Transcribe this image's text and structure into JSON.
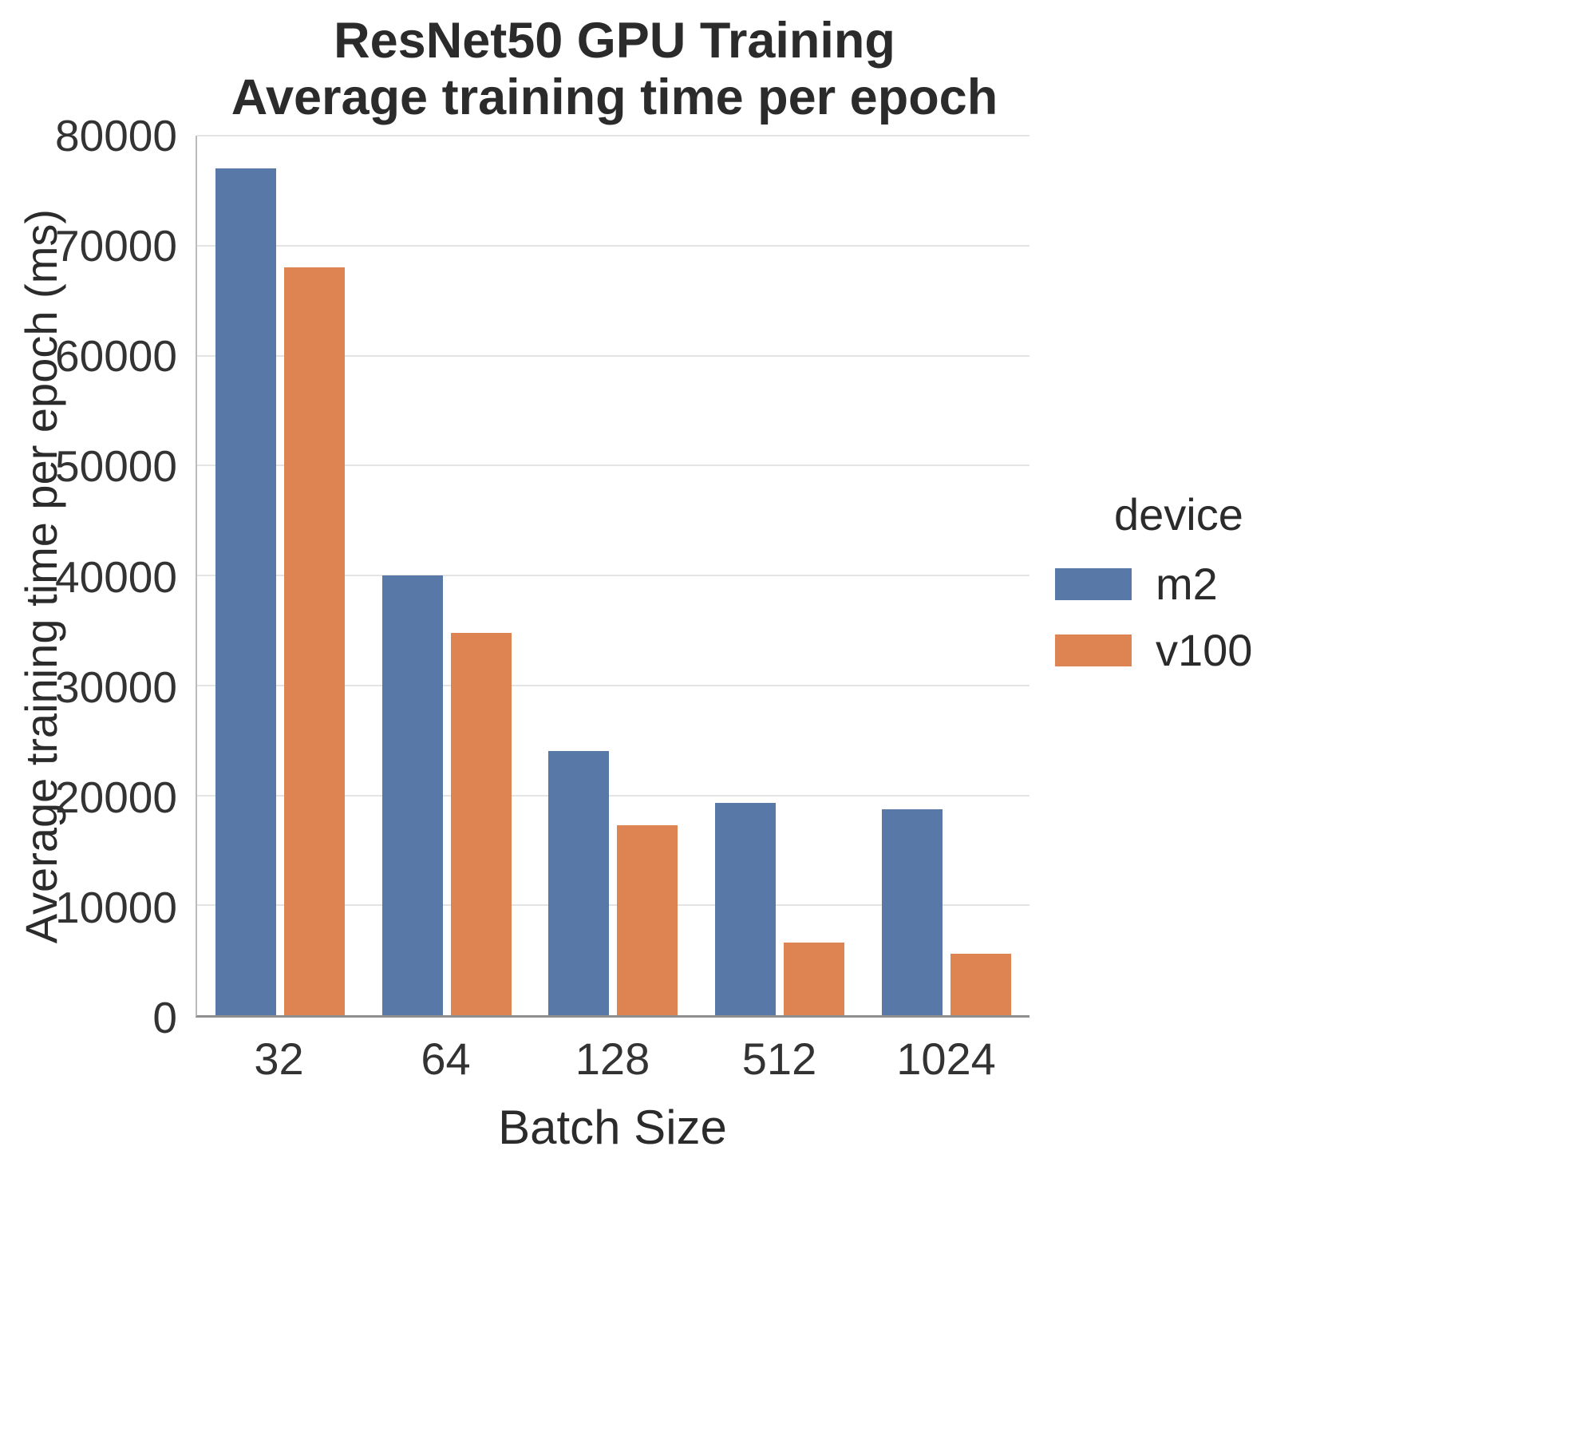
{
  "chart_data": {
    "type": "bar",
    "title": "ResNet50 GPU Training\nAverage training time per epoch",
    "title_lines": [
      "ResNet50 GPU Training",
      "Average training time per epoch"
    ],
    "xlabel": "Batch Size",
    "ylabel": "Average training time per epoch (ms)",
    "categories": [
      "32",
      "64",
      "128",
      "512",
      "1024"
    ],
    "series": [
      {
        "name": "m2",
        "color": "#5878a8",
        "values": [
          77000,
          40000,
          24000,
          19300,
          18700
        ]
      },
      {
        "name": "v100",
        "color": "#dd8452",
        "values": [
          68000,
          34800,
          17300,
          6600,
          5600
        ]
      }
    ],
    "ylim": [
      0,
      80000
    ],
    "yticks": [
      0,
      10000,
      20000,
      30000,
      40000,
      50000,
      60000,
      70000,
      80000
    ],
    "grid": true,
    "legend": {
      "title": "device",
      "position": "right",
      "entries": [
        "m2",
        "v100"
      ]
    }
  }
}
